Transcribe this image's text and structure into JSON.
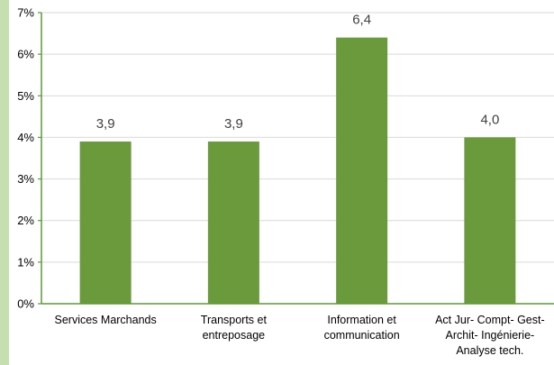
{
  "chart_data": {
    "type": "bar",
    "categories": [
      [
        "Services Marchands"
      ],
      [
        "Transports et",
        "entreposage"
      ],
      [
        "Information et",
        "communication"
      ],
      [
        "Act Jur- Compt- Gest-",
        "Archit- Ingénierie-",
        "Analyse tech."
      ]
    ],
    "values": [
      3.9,
      3.9,
      6.4,
      4.0
    ],
    "data_labels": [
      "3,9",
      "3,9",
      "6,4",
      "4,0"
    ],
    "yticks": [
      "0%",
      "1%",
      "2%",
      "3%",
      "4%",
      "5%",
      "6%",
      "7%"
    ],
    "ylim": [
      0,
      7
    ],
    "title": "",
    "xlabel": "",
    "ylabel": "",
    "grid": true,
    "colors": {
      "bar": "#6a9a3c",
      "axis": "#5b9a35",
      "grid": "#d9d9d9",
      "accent": "#c6dfb0"
    }
  }
}
